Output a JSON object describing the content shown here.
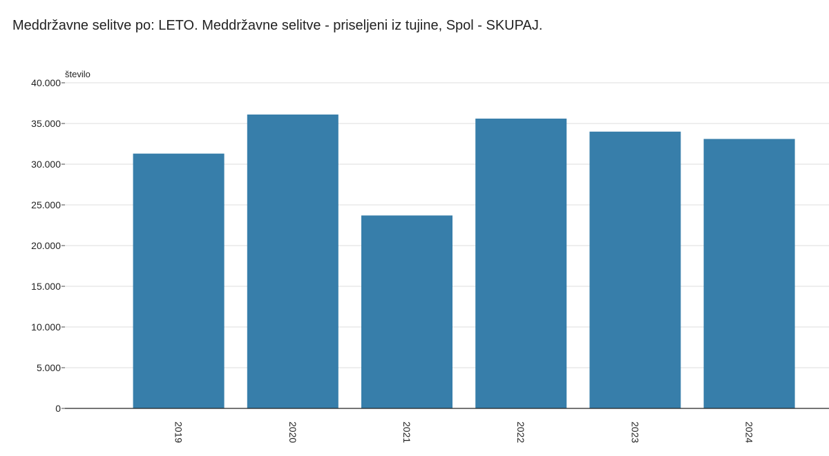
{
  "chart_data": {
    "type": "bar",
    "title": "Meddržavne selitve po: LETO. Meddržavne selitve - priseljeni iz tujine, Spol - SKUPAJ.",
    "ylabel": "število",
    "xlabel": "",
    "categories": [
      "2019",
      "2020",
      "2021",
      "2022",
      "2023",
      "2024"
    ],
    "values": [
      31300,
      36100,
      23700,
      35600,
      34000,
      33100
    ],
    "ylim": [
      0,
      40000
    ],
    "yticks": [
      0,
      5000,
      10000,
      15000,
      20000,
      25000,
      30000,
      35000,
      40000
    ],
    "ytick_labels": [
      "0",
      "5.000",
      "10.000",
      "15.000",
      "20.000",
      "25.000",
      "30.000",
      "35.000",
      "40.000"
    ],
    "grid": true,
    "legend": "none",
    "bar_color": "#377eaa"
  }
}
